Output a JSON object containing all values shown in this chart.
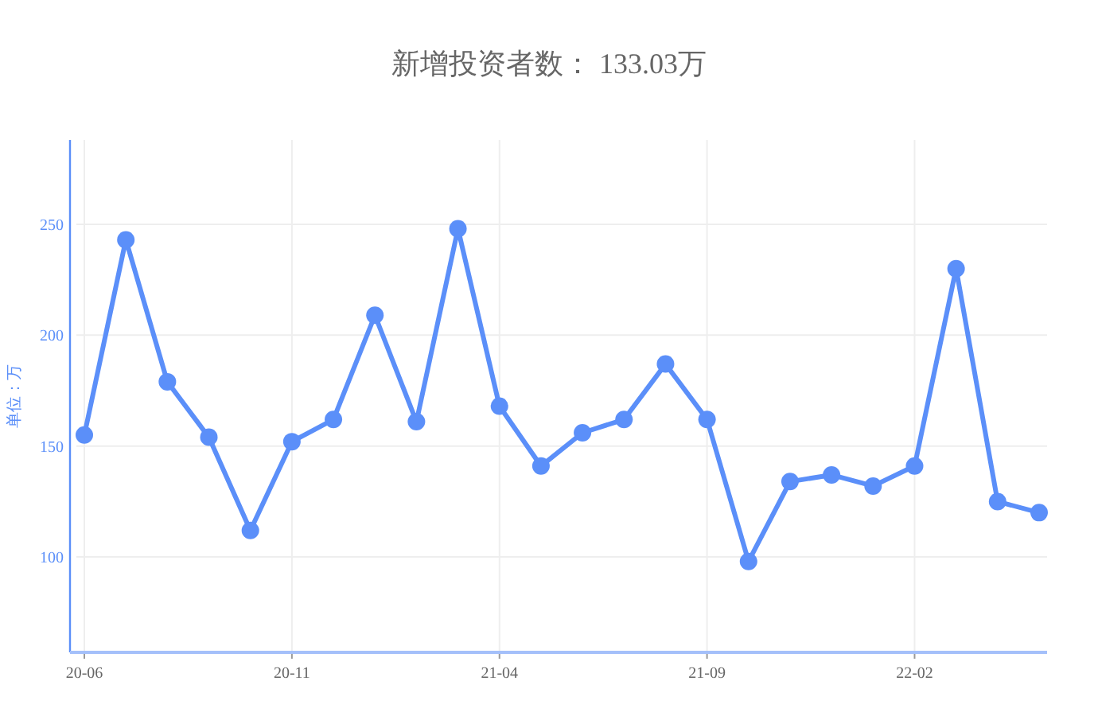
{
  "chart_data": {
    "type": "line",
    "title": "新增投资者数： 133.03万",
    "ylabel": "单位：万",
    "categories": [
      "20-06",
      null,
      null,
      null,
      null,
      "20-11",
      null,
      null,
      null,
      null,
      "21-04",
      null,
      null,
      null,
      null,
      "21-09",
      null,
      null,
      null,
      null,
      "22-02",
      null,
      null,
      null
    ],
    "series": [
      {
        "color": "#5b8ff9",
        "values": [
          155,
          243,
          179,
          154,
          112,
          152,
          162,
          209,
          161,
          248,
          168,
          141,
          156,
          162,
          187,
          162,
          98,
          134,
          137,
          132,
          141,
          230,
          125,
          120
        ]
      }
    ],
    "ylim": [
      57,
      288
    ],
    "yticks": [
      100,
      150,
      200,
      250
    ],
    "grid": true,
    "marker": "circle",
    "line_style": "solid"
  }
}
